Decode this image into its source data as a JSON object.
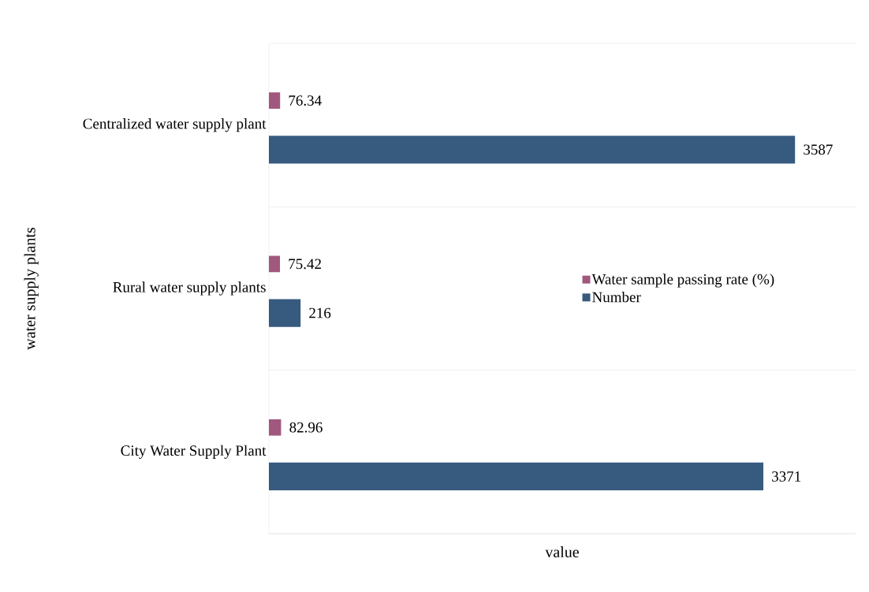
{
  "chart_data": {
    "type": "bar",
    "orientation": "horizontal",
    "xlabel": "value",
    "ylabel": "water supply plants",
    "categories": [
      "Centralized water supply plant",
      "Rural water supply plants",
      "City Water Supply Plant"
    ],
    "series": [
      {
        "name": "Water sample passing rate (%)",
        "color": "#a0587e",
        "values": [
          76.34,
          75.42,
          82.96
        ]
      },
      {
        "name": "Number",
        "color": "#375a7f",
        "values": [
          3587,
          216,
          3371
        ]
      }
    ],
    "xlim": [
      0,
      4000
    ],
    "tick_labels": "y",
    "data_labels": true,
    "legend": "right",
    "grid": "y"
  }
}
